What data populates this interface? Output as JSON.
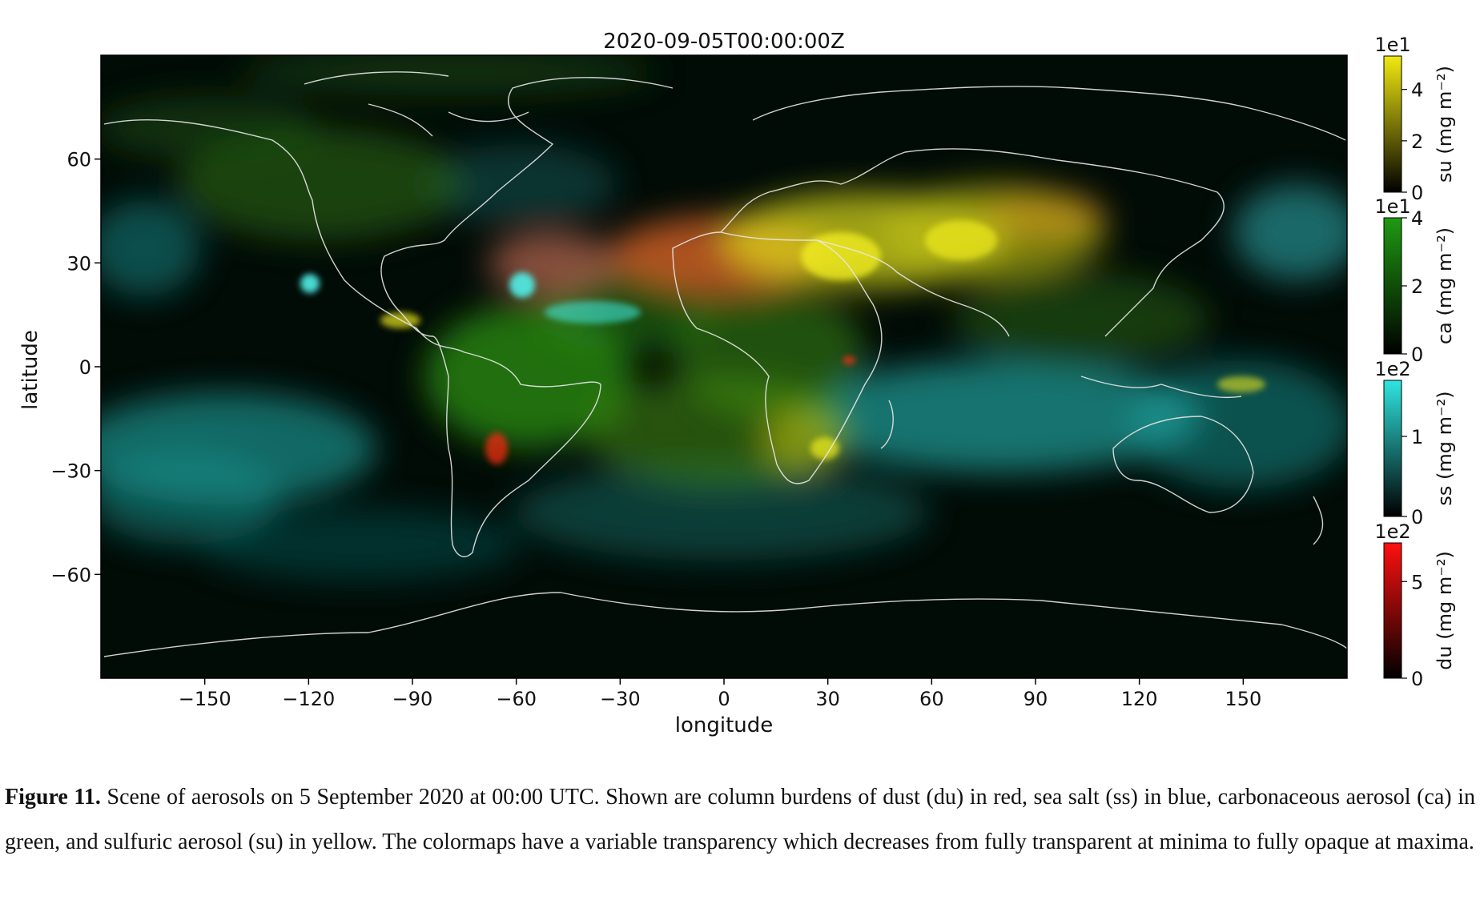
{
  "figure": {
    "title": "2020-09-05T00:00:00Z",
    "xlabel": "longitude",
    "ylabel": "latitude"
  },
  "chart_data": {
    "type": "heatmap",
    "title": "2020-09-05T00:00:00Z",
    "xlabel": "longitude",
    "ylabel": "latitude",
    "xlim": [
      -180,
      180
    ],
    "ylim": [
      -90,
      90
    ],
    "x_ticks": [
      {
        "value": -150,
        "label": "−150"
      },
      {
        "value": -120,
        "label": "−120"
      },
      {
        "value": -90,
        "label": "−90"
      },
      {
        "value": -60,
        "label": "−60"
      },
      {
        "value": -30,
        "label": "−30"
      },
      {
        "value": 0,
        "label": "0"
      },
      {
        "value": 30,
        "label": "30"
      },
      {
        "value": 60,
        "label": "60"
      },
      {
        "value": 90,
        "label": "90"
      },
      {
        "value": 120,
        "label": "120"
      },
      {
        "value": 150,
        "label": "150"
      }
    ],
    "y_ticks": [
      {
        "value": 60,
        "label": "60"
      },
      {
        "value": 30,
        "label": "30"
      },
      {
        "value": 0,
        "label": "0"
      },
      {
        "value": -30,
        "label": "−30"
      },
      {
        "value": -60,
        "label": "−60"
      }
    ],
    "colorbars": [
      {
        "label": "su (mg m⁻²)",
        "multiplier": "1e1",
        "max": 5.3,
        "ticks": [
          0,
          2,
          4
        ],
        "color": "#f2ea10"
      },
      {
        "label": "ca (mg m⁻²)",
        "multiplier": "1e1",
        "max": 4.0,
        "ticks": [
          0,
          2,
          4
        ],
        "color": "#1f9a12"
      },
      {
        "label": "ss (mg m⁻²)",
        "multiplier": "1e2",
        "max": 1.7,
        "ticks": [
          0,
          1
        ],
        "color": "#2fe5e0"
      },
      {
        "label": "du (mg m⁻²)",
        "multiplier": "1e2",
        "max": 7.0,
        "ticks": [
          0,
          5
        ],
        "color": "#ff1010"
      }
    ]
  },
  "caption": {
    "label": "Figure 11.",
    "text": "Scene of aerosols on 5 September 2020 at 00:00 UTC. Shown are column burdens of dust (du) in red, sea salt (ss) in blue, carbonaceous aerosol (ca) in green, and sulfuric aerosol (su) in yellow. The colormaps have a variable transparency which decreases from fully transparent at minima to fully opaque at maxima."
  }
}
